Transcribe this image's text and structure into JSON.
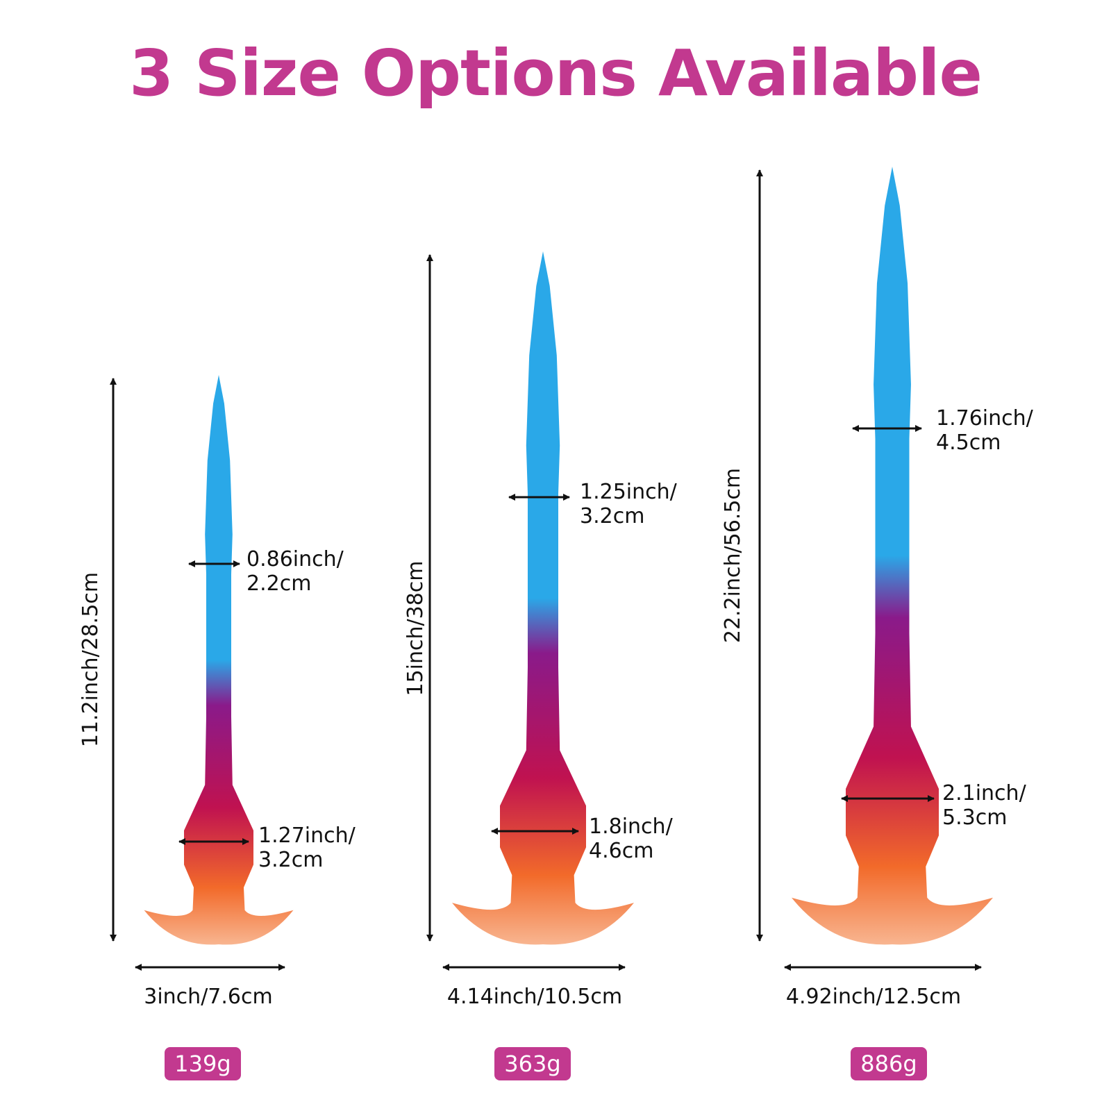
{
  "title": "3 Size Options Available",
  "colors": {
    "accent": "#c2398f",
    "blue": "#2aa8e8",
    "purple": "#8a1a8a",
    "crimson": "#c01250",
    "orange": "#f26a2a"
  },
  "sizes": [
    {
      "length": "11.2inch/28.5cm",
      "shaft_width_1": "0.86inch/",
      "shaft_width_2": "2.2cm",
      "collar_width_1": "1.27inch/",
      "collar_width_2": "3.2cm",
      "base_width": "3inch/7.6cm",
      "weight": "139g"
    },
    {
      "length": "15inch/38cm",
      "shaft_width_1": "1.25inch/",
      "shaft_width_2": "3.2cm",
      "collar_width_1": "1.8inch/",
      "collar_width_2": "4.6cm",
      "base_width": "4.14inch/10.5cm",
      "weight": "363g"
    },
    {
      "length": "22.2inch/56.5cm",
      "shaft_width_1": "1.76inch/",
      "shaft_width_2": "4.5cm",
      "collar_width_1": "2.1inch/",
      "collar_width_2": "5.3cm",
      "base_width": "4.92inch/12.5cm",
      "weight": "886g"
    }
  ]
}
